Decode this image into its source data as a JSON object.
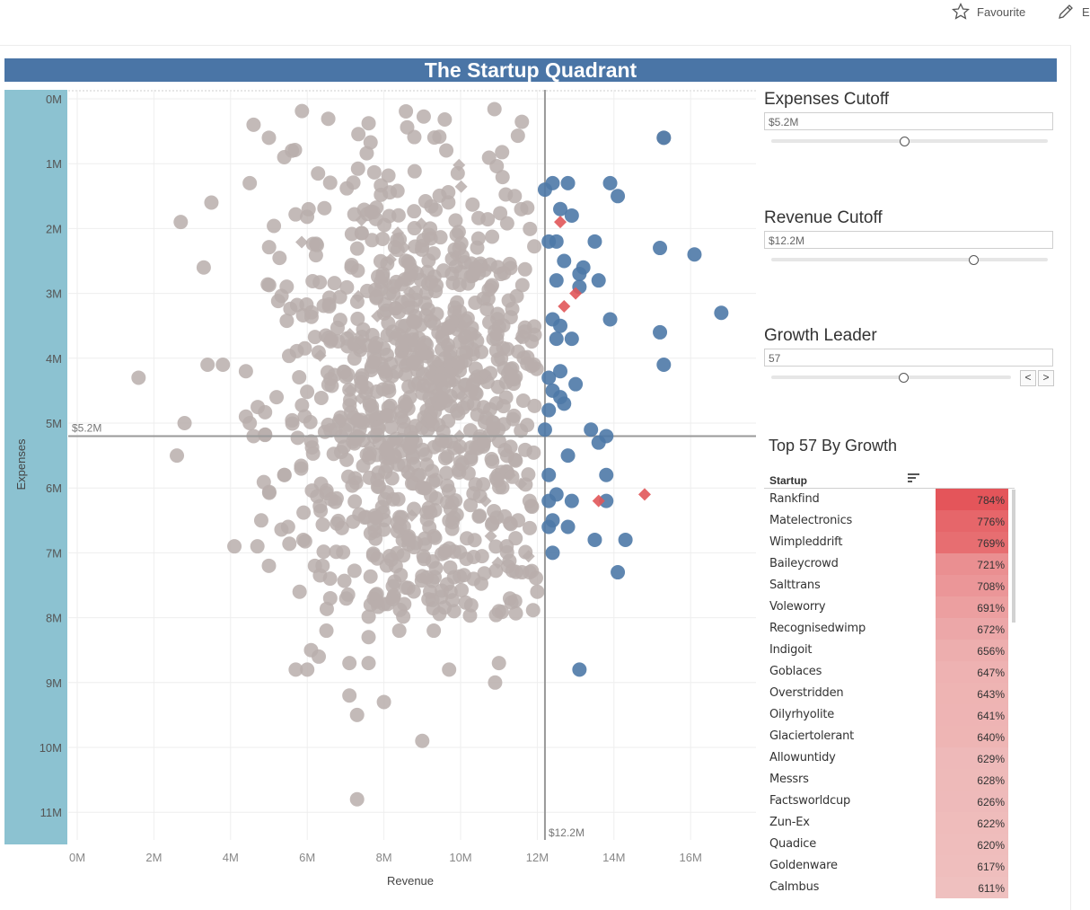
{
  "toolbar": {
    "favourite_label": "Favourite",
    "edit_label": "E"
  },
  "dashboard": {
    "title": "The Startup Quadrant"
  },
  "controls": {
    "expenses_cutoff": {
      "title": "Expenses Cutoff",
      "value": "$5.2M",
      "slider_fraction": 0.48
    },
    "revenue_cutoff": {
      "title": "Revenue Cutoff",
      "value": "$12.2M",
      "slider_fraction": 0.73
    },
    "growth_leader": {
      "title": "Growth Leader",
      "value": "57",
      "slider_fraction": 0.55,
      "prev_label": "<",
      "next_label": ">"
    }
  },
  "top_table": {
    "title": "Top 57 By Growth",
    "column_header": "Startup",
    "rows": [
      {
        "name": "Rankfind",
        "value": "784%"
      },
      {
        "name": "Matelectronics",
        "value": "776%"
      },
      {
        "name": "Wimpleddrift",
        "value": "769%"
      },
      {
        "name": "Baileycrowd",
        "value": "721%"
      },
      {
        "name": "Salttrans",
        "value": "708%"
      },
      {
        "name": "Voleworry",
        "value": "691%"
      },
      {
        "name": "Recognisedwimp",
        "value": "672%"
      },
      {
        "name": "Indigoit",
        "value": "656%"
      },
      {
        "name": "Goblaces",
        "value": "647%"
      },
      {
        "name": "Overstridden",
        "value": "643%"
      },
      {
        "name": "Oilyrhyolite",
        "value": "641%"
      },
      {
        "name": "Glaciertolerant",
        "value": "640%"
      },
      {
        "name": "Allowuntidy",
        "value": "629%"
      },
      {
        "name": "Messrs",
        "value": "628%"
      },
      {
        "name": "Factsworldcup",
        "value": "626%"
      },
      {
        "name": "Zun-Ex",
        "value": "622%"
      },
      {
        "name": "Quadice",
        "value": "620%"
      },
      {
        "name": "Goldenware",
        "value": "617%"
      },
      {
        "name": "Calmbus",
        "value": "611%"
      }
    ]
  },
  "colors": {
    "title_bar": "#4a75a6",
    "axis_band": "#8cc2d1",
    "gray_point": "#b8aeab",
    "blue_point": "#4e79a7",
    "red_point": "#e15759",
    "heat_high": "#e4555a",
    "heat_low": "#efc0bf"
  },
  "chart_data": {
    "type": "scatter",
    "xlabel": "Revenue",
    "ylabel": "Expenses",
    "xlim": [
      0,
      17.5
    ],
    "ylim": [
      0,
      11.6
    ],
    "y_reversed": true,
    "grid": true,
    "x_ticks": [
      "0M",
      "2M",
      "4M",
      "6M",
      "8M",
      "10M",
      "12M",
      "14M",
      "16M"
    ],
    "y_ticks": [
      "0M",
      "1M",
      "2M",
      "3M",
      "4M",
      "5M",
      "6M",
      "7M",
      "8M",
      "9M",
      "10M",
      "11M"
    ],
    "reference_lines": [
      {
        "axis": "y",
        "value": 5.2,
        "label": "$5.2M"
      },
      {
        "axis": "x",
        "value": 12.2,
        "label": "$12.2M"
      }
    ],
    "series": [
      {
        "color": "#4e79a7",
        "marker": "circle",
        "points": [
          [
            15.3,
            0.6
          ],
          [
            12.4,
            1.3
          ],
          [
            12.8,
            1.3
          ],
          [
            13.9,
            1.3
          ],
          [
            14.1,
            1.5
          ],
          [
            12.2,
            1.4
          ],
          [
            12.6,
            1.7
          ],
          [
            12.9,
            1.8
          ],
          [
            12.3,
            2.2
          ],
          [
            12.5,
            2.2
          ],
          [
            13.5,
            2.2
          ],
          [
            15.2,
            2.3
          ],
          [
            16.1,
            2.4
          ],
          [
            12.7,
            2.5
          ],
          [
            13.2,
            2.6
          ],
          [
            12.5,
            2.8
          ],
          [
            13.1,
            2.7
          ],
          [
            13.6,
            2.8
          ],
          [
            13.1,
            2.9
          ],
          [
            12.4,
            3.4
          ],
          [
            13.9,
            3.4
          ],
          [
            16.8,
            3.3
          ],
          [
            12.6,
            3.5
          ],
          [
            15.2,
            3.6
          ],
          [
            12.5,
            3.7
          ],
          [
            12.9,
            3.7
          ],
          [
            15.3,
            4.1
          ],
          [
            12.6,
            4.2
          ],
          [
            12.3,
            4.3
          ],
          [
            13.0,
            4.4
          ],
          [
            12.4,
            4.5
          ],
          [
            12.6,
            4.6
          ],
          [
            12.3,
            4.8
          ],
          [
            12.7,
            4.7
          ],
          [
            13.4,
            5.1
          ],
          [
            13.8,
            5.2
          ],
          [
            12.2,
            5.1
          ],
          [
            13.6,
            5.3
          ],
          [
            12.8,
            5.5
          ],
          [
            12.3,
            5.8
          ],
          [
            13.8,
            5.8
          ],
          [
            12.5,
            6.1
          ],
          [
            12.3,
            6.2
          ],
          [
            12.9,
            6.2
          ],
          [
            13.8,
            6.2
          ],
          [
            12.3,
            6.6
          ],
          [
            12.4,
            6.5
          ],
          [
            12.8,
            6.6
          ],
          [
            13.5,
            6.8
          ],
          [
            14.3,
            6.8
          ],
          [
            12.4,
            7.0
          ],
          [
            14.1,
            7.3
          ],
          [
            13.1,
            8.8
          ]
        ]
      },
      {
        "color": "#e15759",
        "marker": "diamond",
        "points": [
          [
            12.6,
            1.9
          ],
          [
            12.7,
            3.2
          ],
          [
            13.0,
            3.0
          ],
          [
            13.6,
            6.2
          ],
          [
            14.8,
            6.1
          ]
        ]
      },
      {
        "color": "#b8aeab",
        "marker": "circle",
        "points": [
          [
            7.3,
            10.8
          ],
          [
            9.0,
            9.9
          ],
          [
            7.3,
            9.5
          ],
          [
            8.0,
            9.3
          ],
          [
            7.1,
            9.2
          ],
          [
            10.9,
            9.0
          ],
          [
            9.7,
            8.8
          ],
          [
            5.7,
            8.8
          ],
          [
            6.0,
            8.8
          ],
          [
            7.1,
            8.7
          ],
          [
            7.6,
            8.7
          ],
          [
            11.0,
            8.7
          ],
          [
            6.1,
            8.5
          ],
          [
            6.3,
            8.6
          ],
          [
            6.5,
            8.2
          ],
          [
            8.4,
            8.2
          ],
          [
            9.3,
            8.2
          ],
          [
            7.6,
            8.3
          ],
          [
            1.6,
            4.3
          ],
          [
            2.8,
            5.0
          ],
          [
            2.6,
            5.5
          ],
          [
            2.7,
            1.9
          ],
          [
            3.5,
            1.6
          ],
          [
            3.3,
            2.6
          ],
          [
            3.4,
            4.1
          ],
          [
            3.8,
            4.1
          ],
          [
            4.1,
            6.9
          ],
          [
            4.4,
            4.9
          ],
          [
            4.4,
            4.2
          ],
          [
            4.5,
            5.0
          ],
          [
            4.6,
            5.2
          ],
          [
            4.5,
            1.3
          ],
          [
            4.7,
            6.9
          ],
          [
            4.8,
            6.5
          ],
          [
            5.0,
            7.2
          ],
          [
            4.6,
            0.4
          ],
          [
            5.0,
            0.6
          ],
          [
            5.4,
            0.9
          ],
          [
            5.6,
            0.8
          ],
          [
            15.3,
            0.6
          ],
          [
            11.6,
            7.3
          ],
          [
            11.8,
            7.3
          ],
          [
            12.0,
            7.6
          ],
          [
            11.0,
            7.9
          ],
          [
            11.5,
            6.5
          ],
          [
            11.2,
            6.9
          ],
          [
            11.8,
            6.2
          ],
          [
            5.2,
            4.6
          ],
          [
            5.4,
            5.8
          ],
          [
            5.5,
            6.6
          ],
          [
            5.9,
            6.8
          ],
          [
            5.8,
            7.6
          ],
          [
            6.2,
            7.2
          ],
          [
            6.4,
            7.2
          ],
          [
            6.6,
            7.7
          ]
        ],
        "cluster": {
          "center": [
            9.0,
            4.5
          ],
          "count_shown": "dense"
        }
      }
    ]
  }
}
